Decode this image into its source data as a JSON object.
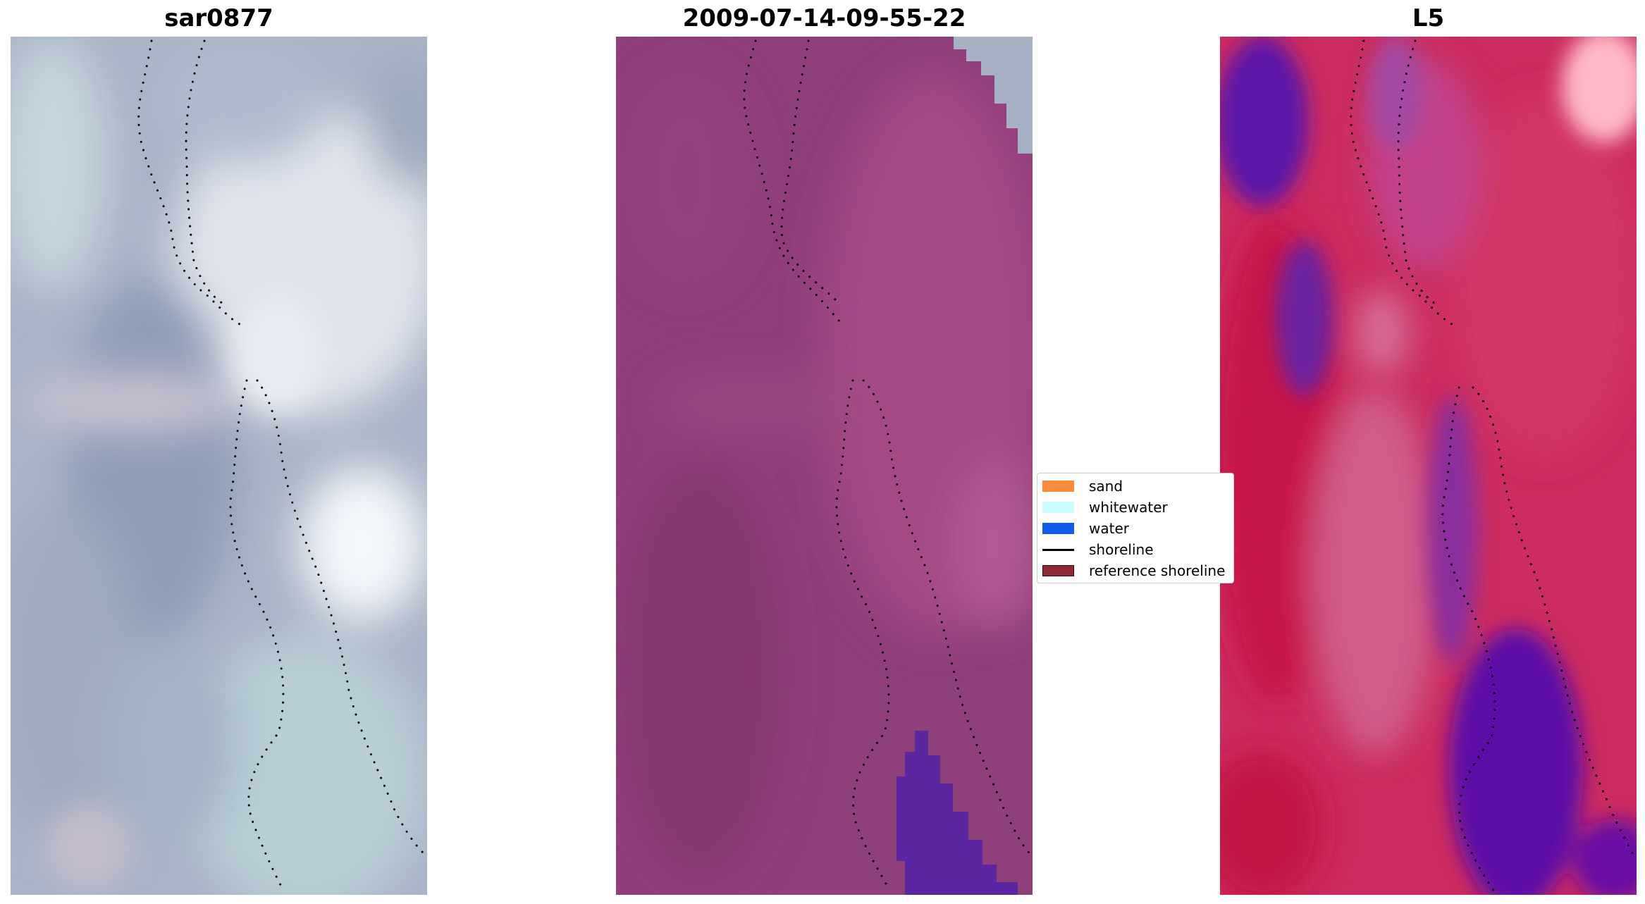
{
  "panels": [
    {
      "title": "sar0877"
    },
    {
      "title": "2009-07-14-09-55-22"
    },
    {
      "title": "L5"
    }
  ],
  "legend": {
    "items": [
      {
        "label": "sand",
        "color": "#f98c3c",
        "kind": "patch"
      },
      {
        "label": "whitewater",
        "color": "#c8ffff",
        "kind": "patch"
      },
      {
        "label": "water",
        "color": "#0f5ce6",
        "kind": "patch"
      },
      {
        "label": "shoreline",
        "color": "#000000",
        "kind": "line"
      },
      {
        "label": "reference shoreline",
        "color": "#8b2c34",
        "kind": "patch"
      }
    ]
  },
  "colors": {
    "panel1_base": "#a6b4c8",
    "panel2_base": "#8d3e78",
    "panel2_water": "#5a27a0",
    "panel3_base": "#cc2a5e",
    "panel3_channel": "#5a0fa8"
  }
}
